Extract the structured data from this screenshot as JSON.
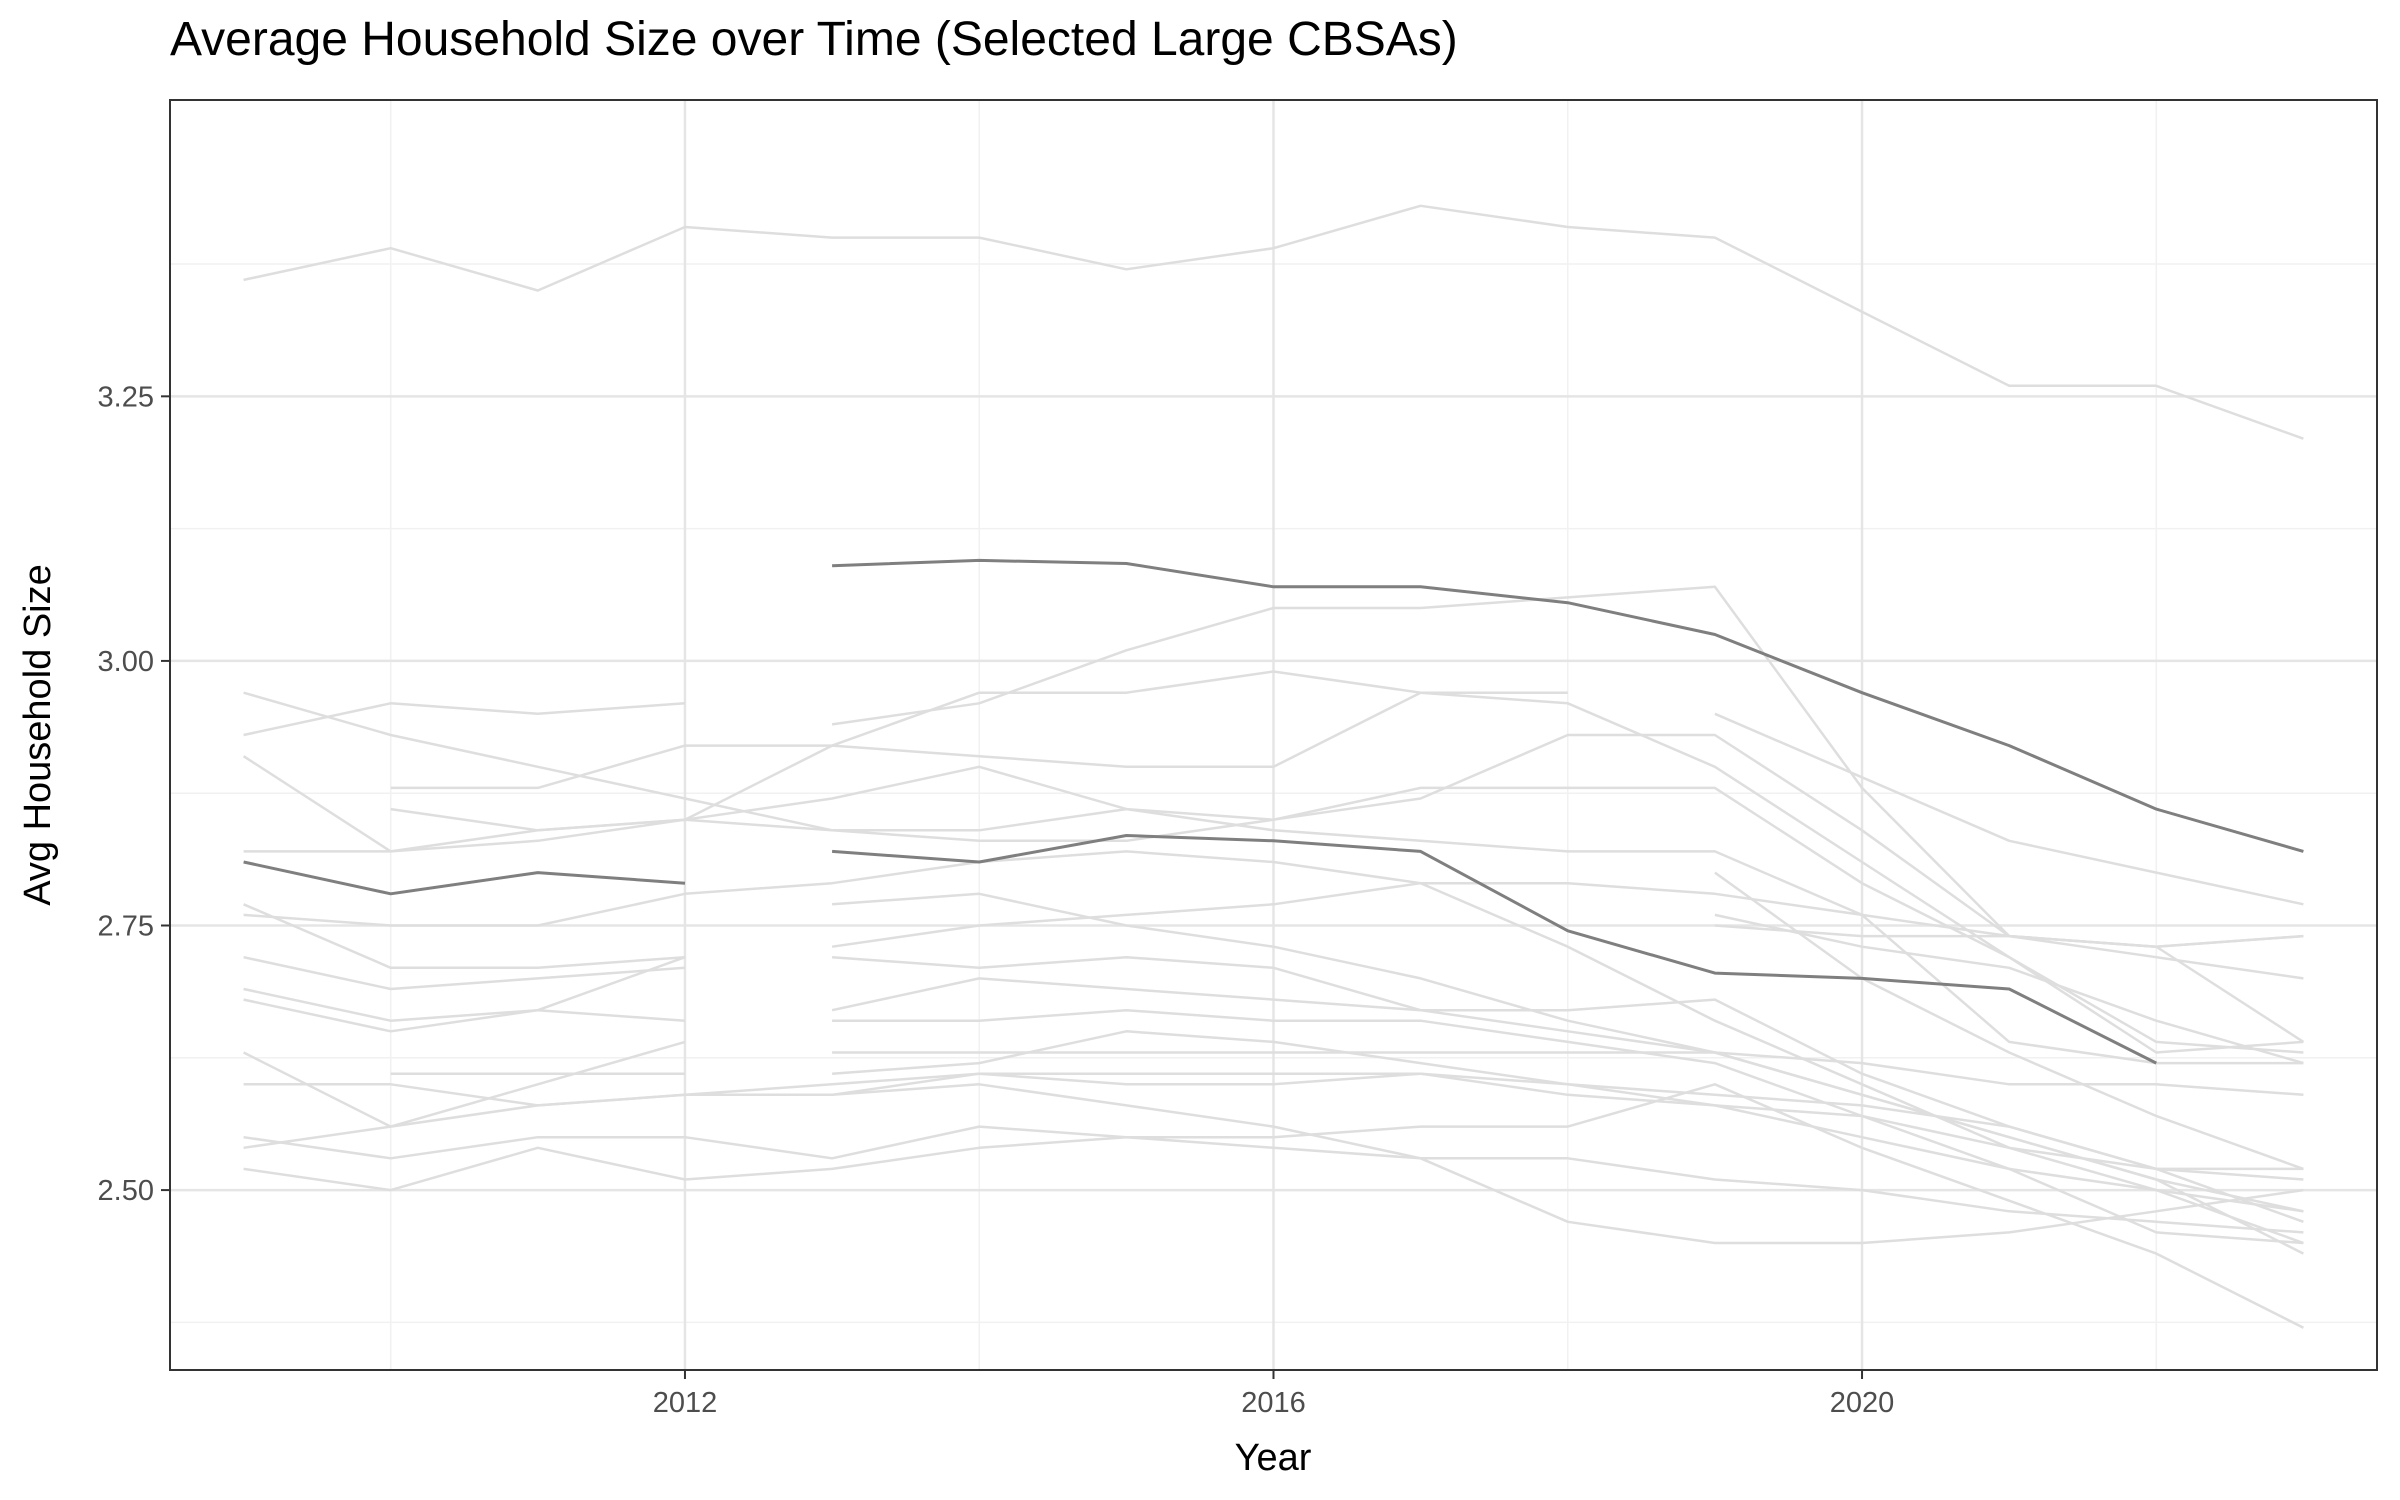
{
  "chart_data": {
    "type": "line",
    "title": "Average Household Size over Time (Selected Large CBSAs)",
    "xlabel": "Year",
    "ylabel": "Avg Household Size",
    "xlim": [
      2008.5,
      2023.5
    ],
    "ylim": [
      2.33,
      3.53
    ],
    "x_ticks": [
      2012,
      2016,
      2020
    ],
    "x_tick_labels": [
      "2012",
      "2016",
      "2020"
    ],
    "y_ticks": [
      2.5,
      2.75,
      3.0,
      3.25
    ],
    "y_tick_labels": [
      "2.50",
      "2.75",
      "3.00",
      "3.25"
    ],
    "grid": true,
    "legend": "none",
    "colors": {
      "background_series": "#dedede",
      "highlight_series": "#7f7f7f",
      "grid_major": "#e5e5e5",
      "grid_minor": "#f1f1f1",
      "panel_border": "#333333"
    },
    "series": [
      {
        "highlight": false,
        "x": [
          2009,
          2010,
          2011,
          2012,
          2013,
          2014,
          2015,
          2016,
          2017,
          2018,
          2019,
          2020,
          2021,
          2022,
          2023
        ],
        "y": [
          3.36,
          3.39,
          3.35,
          3.41,
          3.4,
          3.4,
          3.37,
          3.39,
          3.43,
          3.41,
          3.4,
          3.33,
          3.26,
          3.26,
          3.21
        ]
      },
      {
        "highlight": true,
        "x": [
          2013,
          2014,
          2015,
          2016,
          2017,
          2018,
          2019,
          2020,
          2021,
          2022,
          2023
        ],
        "y": [
          3.09,
          3.095,
          3.092,
          3.07,
          3.07,
          3.055,
          3.025,
          2.97,
          2.92,
          2.86,
          2.82
        ]
      },
      {
        "highlight": true,
        "x": [
          2009,
          2010,
          2011,
          2012
        ],
        "y": [
          2.81,
          2.78,
          2.8,
          2.79
        ]
      },
      {
        "highlight": true,
        "x": [
          2013,
          2014,
          2015,
          2016,
          2017,
          2018,
          2019,
          2020,
          2021,
          2022
        ],
        "y": [
          2.82,
          2.81,
          2.835,
          2.83,
          2.82,
          2.745,
          2.705,
          2.7,
          2.69,
          2.62
        ]
      },
      {
        "highlight": false,
        "x": [
          2013,
          2014,
          2015,
          2016,
          2017,
          2018,
          2019,
          2020,
          2021,
          2022,
          2023
        ],
        "y": [
          2.94,
          2.96,
          3.01,
          3.05,
          3.05,
          3.06,
          3.07,
          2.88,
          2.74,
          2.73,
          2.74
        ]
      },
      {
        "highlight": false,
        "x": [
          2009,
          2010,
          2011,
          2012,
          2013,
          2014,
          2015,
          2016,
          2017,
          2018,
          2019,
          2020,
          2021,
          2022,
          2023
        ],
        "y": [
          2.97,
          2.93,
          2.9,
          2.87,
          2.84,
          2.83,
          2.83,
          2.85,
          2.87,
          2.93,
          2.93,
          2.84,
          2.74,
          2.73,
          2.64
        ]
      },
      {
        "highlight": false,
        "x": [
          2009,
          2010,
          2011,
          2012
        ],
        "y": [
          2.93,
          2.96,
          2.95,
          2.96
        ]
      },
      {
        "highlight": false,
        "x": [
          2009,
          2010,
          2011,
          2012,
          2013,
          2014,
          2015,
          2016,
          2017,
          2018,
          2019,
          2020,
          2021,
          2022,
          2023
        ],
        "y": [
          2.91,
          2.82,
          2.83,
          2.85,
          2.92,
          2.91,
          2.9,
          2.9,
          2.97,
          2.96,
          2.9,
          2.81,
          2.72,
          2.64,
          2.63
        ]
      },
      {
        "highlight": false,
        "x": [
          2009,
          2010,
          2011,
          2012,
          2013,
          2014,
          2015,
          2016,
          2017,
          2018,
          2019,
          2020,
          2021,
          2022,
          2023
        ],
        "y": [
          2.82,
          2.82,
          2.84,
          2.85,
          2.84,
          2.84,
          2.86,
          2.85,
          2.88,
          2.88,
          2.88,
          2.79,
          2.72,
          2.63,
          2.64
        ]
      },
      {
        "highlight": false,
        "x": [
          2010,
          2011,
          2012,
          2013,
          2014,
          2015,
          2016,
          2017,
          2018
        ],
        "y": [
          2.88,
          2.88,
          2.92,
          2.92,
          2.97,
          2.97,
          2.99,
          2.97,
          2.97
        ]
      },
      {
        "highlight": false,
        "x": [
          2010,
          2011,
          2012,
          2013,
          2014,
          2015,
          2016,
          2017,
          2018,
          2019,
          2020,
          2021,
          2022,
          2023
        ],
        "y": [
          2.86,
          2.84,
          2.85,
          2.87,
          2.9,
          2.86,
          2.84,
          2.83,
          2.82,
          2.82,
          2.76,
          2.64,
          2.62,
          2.62
        ]
      },
      {
        "highlight": false,
        "x": [
          2019,
          2020,
          2021,
          2022,
          2023
        ],
        "y": [
          2.95,
          2.89,
          2.83,
          2.8,
          2.77
        ]
      },
      {
        "highlight": false,
        "x": [
          2009,
          2010,
          2011,
          2012,
          2013,
          2014,
          2015,
          2016,
          2017,
          2018,
          2019,
          2020,
          2021,
          2022,
          2023
        ],
        "y": [
          2.76,
          2.75,
          2.75,
          2.78,
          2.79,
          2.81,
          2.82,
          2.81,
          2.79,
          2.79,
          2.78,
          2.76,
          2.74,
          2.72,
          2.7
        ]
      },
      {
        "highlight": false,
        "x": [
          2009,
          2010,
          2011,
          2012
        ],
        "y": [
          2.77,
          2.71,
          2.71,
          2.72
        ]
      },
      {
        "highlight": false,
        "x": [
          2009,
          2010,
          2011,
          2012
        ],
        "y": [
          2.72,
          2.69,
          2.7,
          2.71
        ]
      },
      {
        "highlight": false,
        "x": [
          2009,
          2010,
          2011,
          2012
        ],
        "y": [
          2.69,
          2.66,
          2.67,
          2.72
        ]
      },
      {
        "highlight": false,
        "x": [
          2009,
          2010,
          2011,
          2012
        ],
        "y": [
          2.68,
          2.65,
          2.67,
          2.66
        ]
      },
      {
        "highlight": false,
        "x": [
          2009,
          2010,
          2011,
          2012
        ],
        "y": [
          2.63,
          2.56,
          2.6,
          2.64
        ]
      },
      {
        "highlight": false,
        "x": [
          2010,
          2011,
          2012
        ],
        "y": [
          2.61,
          2.61,
          2.61
        ]
      },
      {
        "highlight": false,
        "x": [
          2009,
          2010,
          2011,
          2012,
          2013,
          2014,
          2015,
          2016,
          2017,
          2018,
          2019,
          2020,
          2021,
          2022,
          2023
        ],
        "y": [
          2.6,
          2.6,
          2.58,
          2.59,
          2.6,
          2.61,
          2.61,
          2.61,
          2.61,
          2.6,
          2.59,
          2.58,
          2.56,
          2.52,
          2.52
        ]
      },
      {
        "highlight": false,
        "x": [
          2009,
          2010,
          2011,
          2012,
          2013,
          2014,
          2015,
          2016,
          2017,
          2018,
          2019,
          2020,
          2021,
          2022,
          2023
        ],
        "y": [
          2.55,
          2.53,
          2.55,
          2.55,
          2.53,
          2.56,
          2.55,
          2.55,
          2.56,
          2.56,
          2.6,
          2.54,
          2.49,
          2.44,
          2.37
        ]
      },
      {
        "highlight": false,
        "x": [
          2009,
          2010,
          2011,
          2012,
          2013,
          2014,
          2015,
          2016,
          2017,
          2018,
          2019,
          2020,
          2021,
          2022,
          2023
        ],
        "y": [
          2.52,
          2.5,
          2.54,
          2.51,
          2.52,
          2.54,
          2.55,
          2.54,
          2.53,
          2.53,
          2.51,
          2.5,
          2.48,
          2.47,
          2.46
        ]
      },
      {
        "highlight": false,
        "x": [
          2009,
          2010,
          2011,
          2012,
          2013,
          2014,
          2015,
          2016,
          2017,
          2018,
          2019,
          2020,
          2021,
          2022,
          2023
        ],
        "y": [
          2.54,
          2.56,
          2.58,
          2.59,
          2.59,
          2.6,
          2.58,
          2.56,
          2.53,
          2.47,
          2.45,
          2.45,
          2.46,
          2.48,
          2.5
        ]
      },
      {
        "highlight": false,
        "x": [
          2013,
          2014,
          2015,
          2016,
          2017,
          2018,
          2019,
          2020,
          2021,
          2022,
          2023
        ],
        "y": [
          2.77,
          2.78,
          2.75,
          2.73,
          2.7,
          2.66,
          2.63,
          2.59,
          2.55,
          2.51,
          2.48
        ]
      },
      {
        "highlight": false,
        "x": [
          2013,
          2014,
          2015,
          2016,
          2017,
          2018,
          2019,
          2020,
          2021,
          2022,
          2023
        ],
        "y": [
          2.72,
          2.71,
          2.72,
          2.71,
          2.67,
          2.67,
          2.68,
          2.61,
          2.56,
          2.52,
          2.47
        ]
      },
      {
        "highlight": false,
        "x": [
          2013,
          2014,
          2015,
          2016,
          2017,
          2018,
          2019,
          2020,
          2021,
          2022,
          2023
        ],
        "y": [
          2.73,
          2.75,
          2.76,
          2.77,
          2.79,
          2.73,
          2.66,
          2.6,
          2.54,
          2.5,
          2.45
        ]
      },
      {
        "highlight": false,
        "x": [
          2013,
          2014,
          2015,
          2016,
          2017,
          2018,
          2019,
          2020,
          2021,
          2022,
          2023
        ],
        "y": [
          2.67,
          2.7,
          2.69,
          2.68,
          2.67,
          2.65,
          2.63,
          2.59,
          2.55,
          2.51,
          2.44
        ]
      },
      {
        "highlight": false,
        "x": [
          2013,
          2014,
          2015,
          2016,
          2017,
          2018,
          2019,
          2020,
          2021,
          2022,
          2023
        ],
        "y": [
          2.66,
          2.66,
          2.67,
          2.66,
          2.66,
          2.64,
          2.62,
          2.57,
          2.52,
          2.46,
          2.45
        ]
      },
      {
        "highlight": false,
        "x": [
          2013,
          2014,
          2015,
          2016,
          2017,
          2018,
          2019,
          2020,
          2021,
          2022,
          2023
        ],
        "y": [
          2.61,
          2.62,
          2.65,
          2.64,
          2.62,
          2.6,
          2.58,
          2.55,
          2.52,
          2.5,
          2.48
        ]
      },
      {
        "highlight": false,
        "x": [
          2013,
          2014,
          2015,
          2016,
          2017,
          2018,
          2019,
          2020,
          2021,
          2022,
          2023
        ],
        "y": [
          2.59,
          2.61,
          2.6,
          2.6,
          2.61,
          2.59,
          2.58,
          2.57,
          2.54,
          2.52,
          2.51
        ]
      },
      {
        "highlight": false,
        "x": [
          2013,
          2014,
          2015,
          2016,
          2017,
          2018,
          2019,
          2020,
          2021,
          2022,
          2023
        ],
        "y": [
          2.63,
          2.63,
          2.63,
          2.63,
          2.63,
          2.63,
          2.63,
          2.62,
          2.6,
          2.6,
          2.59
        ]
      },
      {
        "highlight": false,
        "x": [
          2019,
          2020,
          2021,
          2022,
          2023
        ],
        "y": [
          2.8,
          2.7,
          2.63,
          2.57,
          2.52
        ]
      },
      {
        "highlight": false,
        "x": [
          2019,
          2020,
          2021,
          2022,
          2023
        ],
        "y": [
          2.76,
          2.73,
          2.71,
          2.66,
          2.62
        ]
      },
      {
        "highlight": false,
        "x": [
          2019,
          2020,
          2021,
          2022,
          2023
        ],
        "y": [
          2.75,
          2.74,
          2.74,
          2.73,
          2.74
        ]
      }
    ]
  }
}
